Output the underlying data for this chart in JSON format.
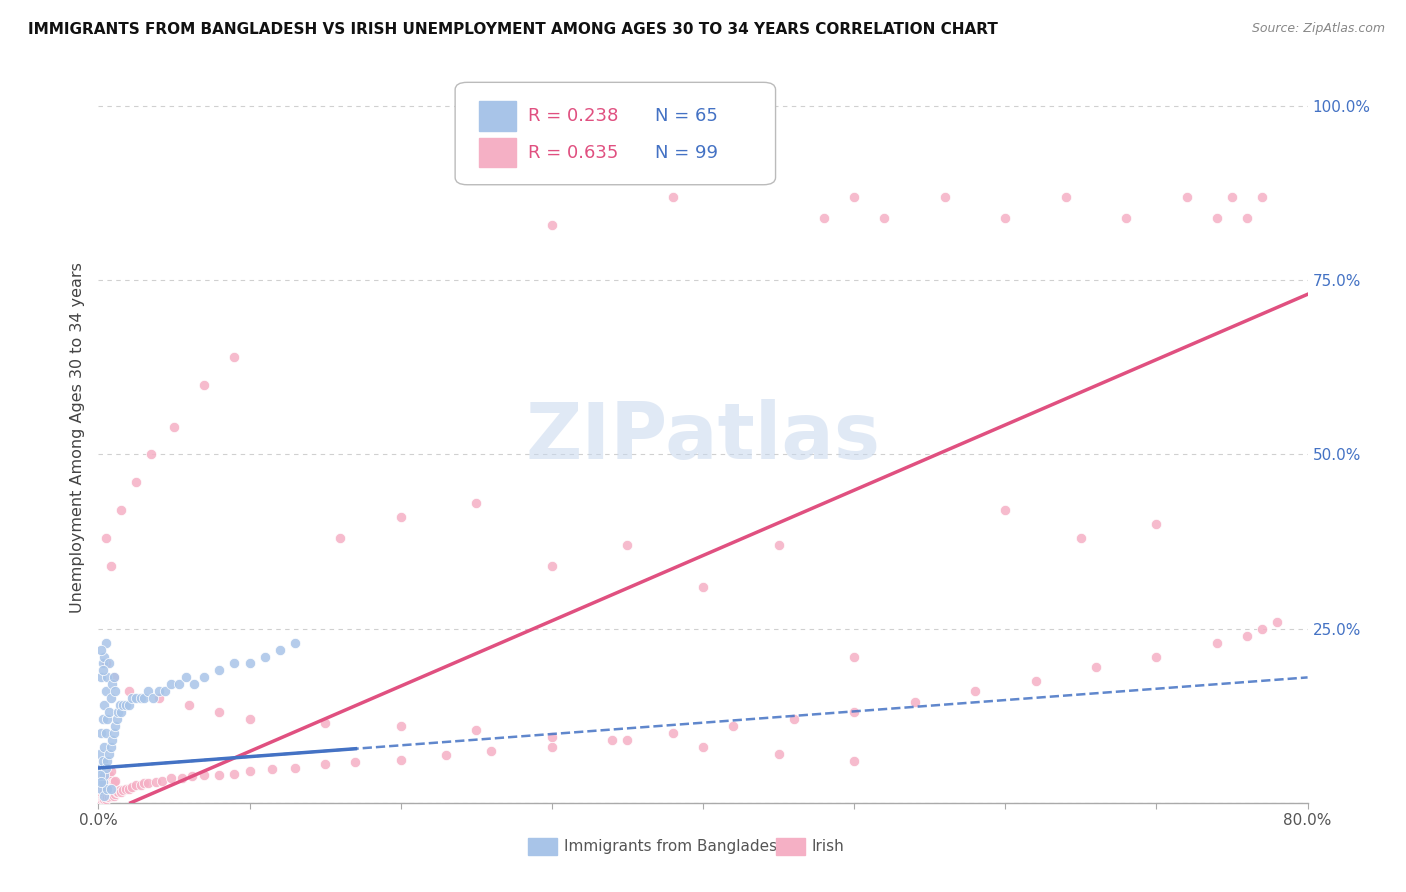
{
  "title": "IMMIGRANTS FROM BANGLADESH VS IRISH UNEMPLOYMENT AMONG AGES 30 TO 34 YEARS CORRELATION CHART",
  "source": "Source: ZipAtlas.com",
  "ylabel": "Unemployment Among Ages 30 to 34 years",
  "x_min": 0.0,
  "x_max": 0.8,
  "y_min": 0.0,
  "y_max": 1.05,
  "x_tick_positions": [
    0.0,
    0.1,
    0.2,
    0.3,
    0.4,
    0.5,
    0.6,
    0.7,
    0.8
  ],
  "x_tick_labels": [
    "0.0%",
    "",
    "",
    "",
    "",
    "",
    "",
    "",
    "80.0%"
  ],
  "y_ticks": [
    0.0,
    0.25,
    0.5,
    0.75,
    1.0
  ],
  "y_tick_labels": [
    "",
    "25.0%",
    "50.0%",
    "75.0%",
    "100.0%"
  ],
  "legend_r1": "R = 0.238",
  "legend_n1": "N = 65",
  "legend_r2": "R = 0.635",
  "legend_n2": "N = 99",
  "color_bangladesh": "#a8c4e8",
  "color_irish": "#f5b0c5",
  "color_trendline_bangladesh": "#4472c4",
  "color_trendline_irish": "#e05080",
  "watermark": "ZIPatlas",
  "background_color": "#ffffff",
  "grid_color": "#d0d0d0",
  "bangladesh_x": [
    0.001,
    0.001,
    0.002,
    0.002,
    0.002,
    0.002,
    0.003,
    0.003,
    0.003,
    0.003,
    0.004,
    0.004,
    0.004,
    0.004,
    0.005,
    0.005,
    0.005,
    0.005,
    0.006,
    0.006,
    0.006,
    0.007,
    0.007,
    0.007,
    0.008,
    0.008,
    0.009,
    0.009,
    0.01,
    0.01,
    0.011,
    0.011,
    0.012,
    0.013,
    0.014,
    0.015,
    0.016,
    0.018,
    0.02,
    0.022,
    0.025,
    0.028,
    0.03,
    0.033,
    0.036,
    0.04,
    0.044,
    0.048,
    0.053,
    0.058,
    0.063,
    0.07,
    0.08,
    0.09,
    0.1,
    0.11,
    0.12,
    0.13,
    0.002,
    0.003,
    0.001,
    0.004,
    0.006,
    0.008,
    0.002
  ],
  "bangladesh_y": [
    0.03,
    0.07,
    0.02,
    0.05,
    0.1,
    0.18,
    0.03,
    0.06,
    0.12,
    0.2,
    0.04,
    0.08,
    0.14,
    0.21,
    0.05,
    0.1,
    0.16,
    0.23,
    0.06,
    0.12,
    0.18,
    0.07,
    0.13,
    0.2,
    0.08,
    0.15,
    0.09,
    0.17,
    0.1,
    0.18,
    0.11,
    0.16,
    0.12,
    0.13,
    0.14,
    0.13,
    0.14,
    0.14,
    0.14,
    0.15,
    0.15,
    0.15,
    0.15,
    0.16,
    0.15,
    0.16,
    0.16,
    0.17,
    0.17,
    0.18,
    0.17,
    0.18,
    0.19,
    0.2,
    0.2,
    0.21,
    0.22,
    0.23,
    0.22,
    0.19,
    0.04,
    0.01,
    0.02,
    0.02,
    0.03
  ],
  "irish_x": [
    0.001,
    0.001,
    0.001,
    0.002,
    0.002,
    0.002,
    0.002,
    0.003,
    0.003,
    0.003,
    0.003,
    0.004,
    0.004,
    0.004,
    0.005,
    0.005,
    0.005,
    0.006,
    0.006,
    0.006,
    0.007,
    0.007,
    0.007,
    0.008,
    0.008,
    0.008,
    0.009,
    0.009,
    0.01,
    0.01,
    0.011,
    0.011,
    0.012,
    0.013,
    0.014,
    0.015,
    0.016,
    0.018,
    0.02,
    0.022,
    0.025,
    0.028,
    0.03,
    0.033,
    0.038,
    0.042,
    0.048,
    0.055,
    0.062,
    0.07,
    0.08,
    0.09,
    0.1,
    0.115,
    0.13,
    0.15,
    0.17,
    0.2,
    0.23,
    0.26,
    0.3,
    0.34,
    0.38,
    0.42,
    0.46,
    0.5,
    0.54,
    0.58,
    0.62,
    0.66,
    0.7,
    0.74,
    0.76,
    0.77,
    0.78,
    0.005,
    0.01,
    0.02,
    0.04,
    0.06,
    0.08,
    0.1,
    0.15,
    0.2,
    0.25,
    0.3,
    0.35,
    0.4,
    0.45,
    0.5,
    0.005,
    0.008,
    0.015,
    0.025,
    0.035,
    0.05,
    0.07,
    0.09
  ],
  "irish_y": [
    0.005,
    0.015,
    0.025,
    0.005,
    0.015,
    0.025,
    0.035,
    0.005,
    0.015,
    0.025,
    0.04,
    0.005,
    0.015,
    0.03,
    0.005,
    0.02,
    0.035,
    0.008,
    0.02,
    0.038,
    0.008,
    0.022,
    0.04,
    0.01,
    0.025,
    0.045,
    0.012,
    0.028,
    0.01,
    0.03,
    0.012,
    0.032,
    0.015,
    0.015,
    0.018,
    0.015,
    0.018,
    0.02,
    0.02,
    0.022,
    0.025,
    0.025,
    0.028,
    0.028,
    0.03,
    0.032,
    0.035,
    0.035,
    0.038,
    0.04,
    0.04,
    0.042,
    0.045,
    0.048,
    0.05,
    0.055,
    0.058,
    0.062,
    0.068,
    0.075,
    0.08,
    0.09,
    0.1,
    0.11,
    0.12,
    0.13,
    0.145,
    0.16,
    0.175,
    0.195,
    0.21,
    0.23,
    0.24,
    0.25,
    0.26,
    0.2,
    0.18,
    0.16,
    0.15,
    0.14,
    0.13,
    0.12,
    0.115,
    0.11,
    0.105,
    0.095,
    0.09,
    0.08,
    0.07,
    0.06,
    0.38,
    0.34,
    0.42,
    0.46,
    0.5,
    0.54,
    0.6,
    0.64
  ],
  "irish_outliers_x": [
    0.3,
    0.38,
    0.44,
    0.48,
    0.5,
    0.52,
    0.56,
    0.6,
    0.64,
    0.68,
    0.72,
    0.74,
    0.75,
    0.76,
    0.77
  ],
  "irish_outliers_y": [
    0.83,
    0.87,
    0.9,
    0.84,
    0.87,
    0.84,
    0.87,
    0.84,
    0.87,
    0.84,
    0.87,
    0.84,
    0.87,
    0.84,
    0.87
  ],
  "irish_mid_x": [
    0.16,
    0.2,
    0.25,
    0.3,
    0.35,
    0.4,
    0.45,
    0.5,
    0.6,
    0.65,
    0.7
  ],
  "irish_mid_y": [
    0.38,
    0.41,
    0.43,
    0.34,
    0.37,
    0.31,
    0.37,
    0.21,
    0.42,
    0.38,
    0.4
  ],
  "trendline_bangladesh_x0": 0.0,
  "trendline_bangladesh_x1": 0.8,
  "trendline_bangladesh_y0": 0.05,
  "trendline_bangladesh_y1": 0.18,
  "trendline_bangladesh_solid_x1": 0.17,
  "trendline_bangladesh_solid_y1": 0.138,
  "trendline_irish_x0": 0.0,
  "trendline_irish_x1": 0.8,
  "trendline_irish_y0": -0.02,
  "trendline_irish_y1": 0.73
}
